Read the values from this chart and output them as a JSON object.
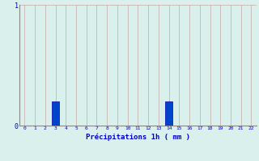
{
  "hours": [
    0,
    1,
    2,
    3,
    4,
    5,
    6,
    7,
    8,
    9,
    10,
    11,
    12,
    13,
    14,
    15,
    16,
    17,
    18,
    19,
    20,
    21,
    22
  ],
  "values": [
    0,
    0,
    0,
    0.2,
    0,
    0,
    0,
    0,
    0,
    0,
    0,
    0,
    0,
    0,
    0.2,
    0,
    0,
    0,
    0,
    0,
    0,
    0,
    0
  ],
  "bar_color": "#0044cc",
  "bar_edge_color": "#0000aa",
  "background_color": "#daf0ec",
  "grid_color": "#c8a8a8",
  "axis_color": "#888888",
  "label_color": "#0000cc",
  "xlabel": "Précipitations 1h ( mm )",
  "ylim": [
    0,
    1
  ],
  "xlim": [
    -0.5,
    22.5
  ],
  "yticks": [
    0,
    1
  ],
  "xticks": [
    0,
    1,
    2,
    3,
    4,
    5,
    6,
    7,
    8,
    9,
    10,
    11,
    12,
    13,
    14,
    15,
    16,
    17,
    18,
    19,
    20,
    21,
    22
  ]
}
